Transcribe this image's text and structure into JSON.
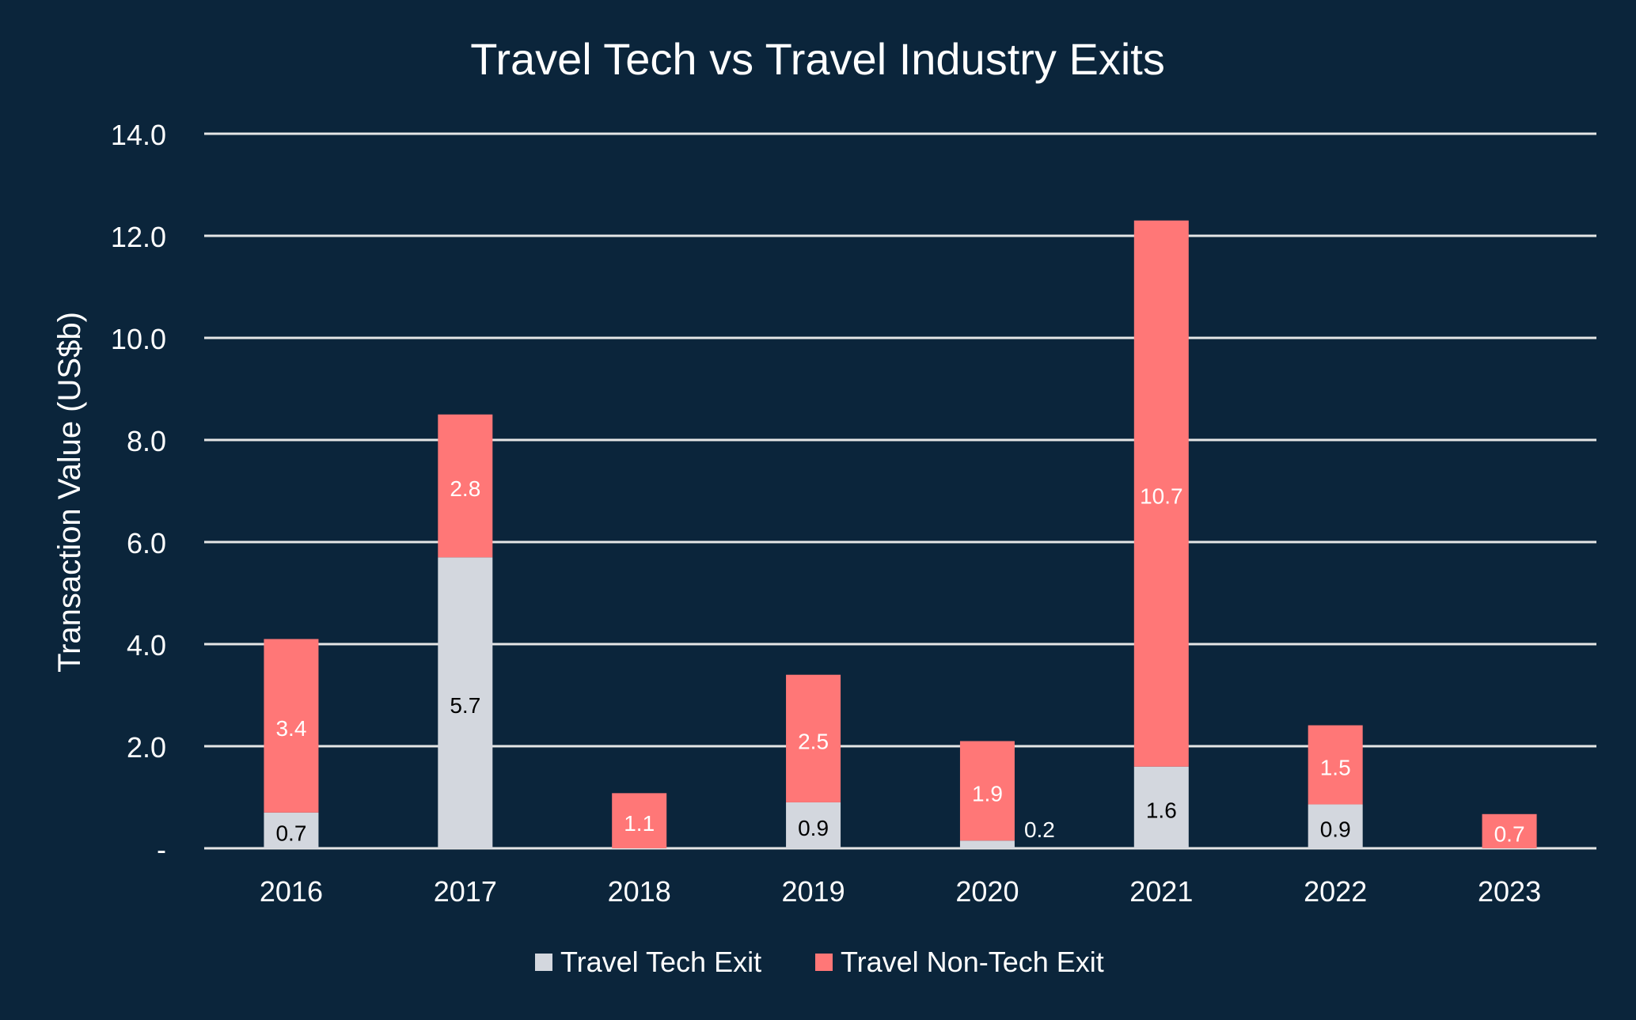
{
  "chart_data": {
    "type": "bar",
    "stacked": true,
    "title": "Travel Tech vs Travel Industry Exits",
    "xlabel": "",
    "ylabel": "Transaction Value (US$b)",
    "ylim": [
      0,
      14
    ],
    "yticks": [
      {
        "value": 0,
        "label": "-"
      },
      {
        "value": 2,
        "label": "2.0"
      },
      {
        "value": 4,
        "label": "4.0"
      },
      {
        "value": 6,
        "label": "6.0"
      },
      {
        "value": 8,
        "label": "8.0"
      },
      {
        "value": 10,
        "label": "10.0"
      },
      {
        "value": 12,
        "label": "12.0"
      },
      {
        "value": 14,
        "label": "14.0"
      }
    ],
    "grid": true,
    "legend_position": "bottom-center",
    "categories": [
      "2016",
      "2017",
      "2018",
      "2019",
      "2020",
      "2021",
      "2022",
      "2023"
    ],
    "series": [
      {
        "name": "Travel Tech Exit",
        "color": "#d3d7de",
        "label_color": "#000000",
        "values": [
          0.7,
          5.7,
          0,
          0.9,
          0.15,
          1.6,
          0.86,
          0
        ],
        "labels": [
          "0.7",
          "5.7",
          "",
          "0.9",
          "0.2",
          "1.6",
          "0.9",
          ""
        ]
      },
      {
        "name": "Travel Non-Tech Exit",
        "color": "#ff7777",
        "label_color": "#ffffff",
        "values": [
          3.4,
          2.8,
          1.08,
          2.5,
          1.95,
          10.7,
          1.55,
          0.67
        ],
        "labels": [
          "3.4",
          "2.8",
          "1.1",
          "2.5",
          "1.9",
          "10.7",
          "1.5",
          "0.7"
        ]
      }
    ]
  },
  "colors": {
    "background": "#0b253b",
    "text": "#ffffff",
    "grid": "#e6e6e6"
  }
}
